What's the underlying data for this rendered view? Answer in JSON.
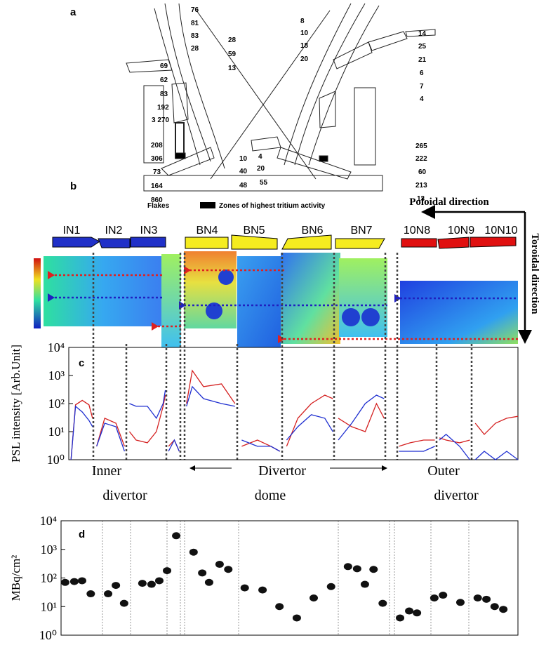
{
  "panel_a": {
    "label": "a",
    "numbers": [
      "76",
      "81",
      "83",
      "28",
      "28",
      "59",
      "13",
      "69",
      "62",
      "83",
      "192",
      "3 270",
      "208",
      "306",
      "73",
      "164",
      "860",
      "10",
      "40",
      "48",
      "4",
      "20",
      "55",
      "8",
      "10",
      "18",
      "20",
      "14",
      "25",
      "21",
      "6",
      "7",
      "4",
      "265",
      "222",
      "60",
      "213",
      "13"
    ],
    "flakes": "Flakes",
    "legend": "Zones of highest tritium activity"
  },
  "panel_b": {
    "label": "b",
    "poloidal": "Poloidal direction",
    "toroidal": "Toroidal direction",
    "tiles": [
      "IN1",
      "IN2",
      "IN3",
      "BN4",
      "BN5",
      "BN6",
      "BN7",
      "10N8",
      "10N9",
      "10N10"
    ]
  },
  "regions": [
    "Inner",
    "divertor",
    "Divertor",
    "dome",
    "Outer",
    "divertor"
  ],
  "chart_data": [
    {
      "type": "line",
      "label": "c",
      "ylabel": "PSL intensity [Arb.Unit]",
      "yscale": "log",
      "xlim": [
        0,
        100
      ],
      "ylim": [
        1,
        10000
      ],
      "yticks": [
        {
          "value": 1,
          "label": "10⁰"
        },
        {
          "value": 10,
          "label": "10¹"
        },
        {
          "value": 100,
          "label": "10²"
        },
        {
          "value": 1000,
          "label": "10³"
        },
        {
          "value": 10000,
          "label": "10⁴"
        }
      ],
      "x": [
        0.5,
        1.5,
        3,
        4.5,
        5.3,
        5.5,
        6.2,
        8,
        10.5,
        12.4,
        12.8,
        13.5,
        15,
        17.5,
        19.5,
        21,
        21.5,
        21.7,
        22.2,
        23.5,
        24.6,
        25,
        26.2,
        27.5,
        30,
        34,
        37,
        37.5,
        38.5,
        42,
        45,
        47,
        47.5,
        48.5,
        51,
        54,
        57,
        58.8,
        59.1,
        60,
        63,
        66,
        68.5,
        70.2,
        70.5,
        73.5,
        76,
        79,
        81.5,
        81.9,
        82.5,
        84,
        87,
        89.3,
        89.7,
        90.5,
        92.5,
        95,
        97.5,
        100
      ],
      "series": [
        {
          "color": "#d42020",
          "values": [
            1,
            90,
            130,
            90,
            30,
            null,
            3,
            30,
            20,
            3,
            null,
            10,
            5,
            4,
            10,
            80,
            200,
            null,
            3,
            5,
            2,
            null,
            100,
            1500,
            400,
            500,
            100,
            null,
            3,
            5,
            3,
            2,
            null,
            3,
            30,
            100,
            200,
            150,
            null,
            30,
            15,
            10,
            100,
            30,
            null,
            3,
            4,
            5,
            5,
            null,
            6,
            5,
            4,
            5,
            null,
            20,
            8,
            20,
            30,
            35
          ]
        },
        {
          "color": "#1f2fd0",
          "values": [
            1,
            80,
            50,
            25,
            15,
            null,
            3,
            20,
            15,
            2,
            null,
            100,
            80,
            80,
            30,
            100,
            300,
            null,
            2,
            5,
            2,
            null,
            80,
            400,
            150,
            100,
            80,
            null,
            5,
            3,
            3,
            2,
            null,
            5,
            15,
            40,
            30,
            10,
            null,
            5,
            20,
            100,
            200,
            150,
            null,
            2,
            2,
            2,
            3,
            null,
            5,
            8,
            3,
            1,
            null,
            1,
            2,
            1,
            2,
            1
          ]
        }
      ]
    },
    {
      "type": "scatter",
      "label": "d",
      "ylabel": "MBq/cm²",
      "yscale": "log",
      "color": "#111111",
      "xlim": [
        0,
        100
      ],
      "ylim": [
        1,
        10000
      ],
      "yticks": [
        {
          "value": 1,
          "label": "10⁰"
        },
        {
          "value": 10,
          "label": "10¹"
        },
        {
          "value": 100,
          "label": "10²"
        },
        {
          "value": 1000,
          "label": "10³"
        },
        {
          "value": 10000,
          "label": "10⁴"
        }
      ],
      "x": [
        0.9,
        2.9,
        4.6,
        6.5,
        10.3,
        12.0,
        13.8,
        17.8,
        19.8,
        21.5,
        23.2,
        25.2,
        29.0,
        30.9,
        32.4,
        34.7,
        36.6,
        40.2,
        44.1,
        47.8,
        51.6,
        55.3,
        59.1,
        62.8,
        64.8,
        66.5,
        68.4,
        70.4,
        74.2,
        76.2,
        77.9,
        81.7,
        83.6,
        87.4,
        91.2,
        93.1,
        94.9,
        96.8
      ],
      "values": [
        70,
        75,
        80,
        28,
        28,
        55,
        13,
        65,
        60,
        80,
        180,
        3000,
        800,
        150,
        70,
        300,
        200,
        45,
        38,
        10,
        4,
        20,
        50,
        250,
        210,
        60,
        200,
        13,
        4,
        7,
        6,
        20,
        25,
        14,
        20,
        18,
        10,
        8
      ]
    }
  ]
}
